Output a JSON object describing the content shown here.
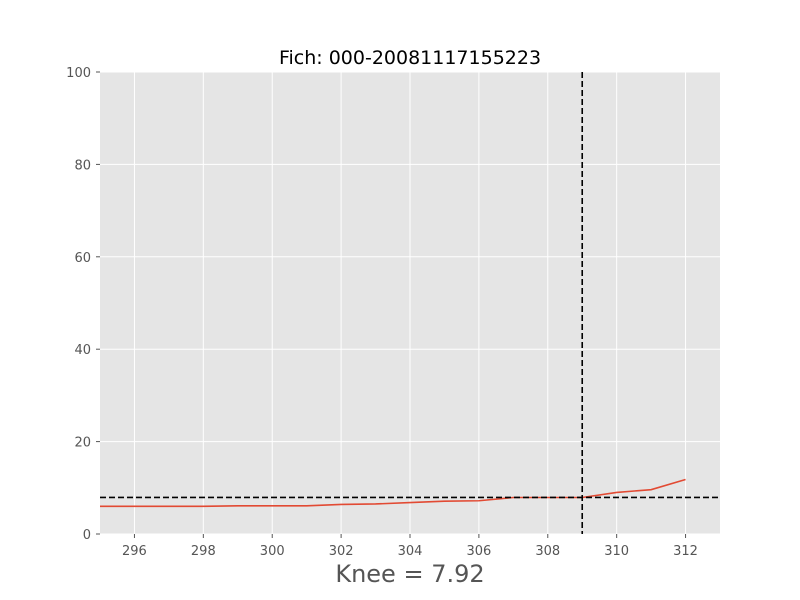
{
  "chart_data": {
    "type": "line",
    "title": "Fich: 000-20081117155223",
    "xlabel": "Knee = 7.92",
    "ylabel": "",
    "xlim": [
      295,
      313
    ],
    "ylim": [
      0,
      100
    ],
    "xticks": [
      296,
      298,
      300,
      302,
      304,
      306,
      308,
      310,
      312
    ],
    "yticks": [
      0,
      20,
      40,
      60,
      80,
      100
    ],
    "grid": true,
    "series": [
      {
        "color": "#E24A33",
        "x": [
          295,
          296,
          297,
          298,
          299,
          300,
          301,
          302,
          303,
          304,
          305,
          306,
          307,
          308,
          309,
          310,
          311,
          312
        ],
        "y": [
          6.0,
          6.0,
          6.0,
          6.0,
          6.1,
          6.1,
          6.1,
          6.4,
          6.5,
          6.8,
          7.1,
          7.2,
          7.9,
          7.9,
          7.9,
          9.0,
          9.6,
          11.8
        ]
      }
    ],
    "reference_lines": {
      "horizontal_y": 7.92,
      "vertical_x": 309,
      "color": "#000000",
      "style": "dashed"
    },
    "plot_background": "#E5E5E5",
    "grid_color": "#FFFFFF"
  }
}
